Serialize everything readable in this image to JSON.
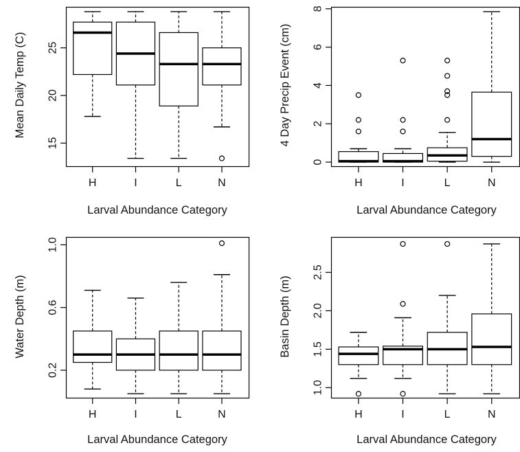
{
  "chart_data": [
    {
      "type": "box",
      "xlabel": "Larval Abundance Category",
      "ylabel": "Mean Daily Temp (C)",
      "categories": [
        "H",
        "I",
        "L",
        "N"
      ],
      "ylim": [
        12.5,
        29.3
      ],
      "yticks": [
        15,
        20,
        25
      ],
      "series": [
        {
          "category": "H",
          "min": 17.8,
          "q1": 22.2,
          "median": 26.6,
          "q3": 27.7,
          "max": 28.8,
          "outliers": []
        },
        {
          "category": "I",
          "min": 13.4,
          "q1": 21.1,
          "median": 24.4,
          "q3": 27.7,
          "max": 28.8,
          "outliers": []
        },
        {
          "category": "L",
          "min": 13.4,
          "q1": 18.9,
          "median": 23.3,
          "q3": 26.6,
          "max": 28.8,
          "outliers": []
        },
        {
          "category": "N",
          "min": 16.7,
          "q1": 21.1,
          "median": 23.3,
          "q3": 25.0,
          "max": 28.8,
          "outliers": [
            13.4
          ]
        }
      ]
    },
    {
      "type": "box",
      "xlabel": "Larval Abundance Category",
      "ylabel": "4 Day Precip Event (cm)",
      "categories": [
        "H",
        "I",
        "L",
        "N"
      ],
      "ylim": [
        -0.25,
        8.1
      ],
      "yticks": [
        0,
        2,
        4,
        6,
        8
      ],
      "series": [
        {
          "category": "H",
          "min": 0.0,
          "q1": 0.0,
          "median": 0.05,
          "q3": 0.55,
          "max": 0.7,
          "outliers": [
            1.6,
            2.2,
            3.5
          ]
        },
        {
          "category": "I",
          "min": 0.0,
          "q1": 0.0,
          "median": 0.05,
          "q3": 0.45,
          "max": 0.7,
          "outliers": [
            1.6,
            2.2,
            5.3
          ]
        },
        {
          "category": "L",
          "min": 0.0,
          "q1": 0.05,
          "median": 0.35,
          "q3": 0.75,
          "max": 1.55,
          "outliers": [
            2.2,
            3.5,
            3.7,
            4.5,
            5.3
          ]
        },
        {
          "category": "N",
          "min": 0.0,
          "q1": 0.3,
          "median": 1.2,
          "q3": 3.65,
          "max": 7.85,
          "outliers": []
        }
      ]
    },
    {
      "type": "box",
      "xlabel": "Larval Abundance Category",
      "ylabel": "Water Depth (m)",
      "categories": [
        "H",
        "I",
        "L",
        "N"
      ],
      "ylim": [
        0.02,
        1.05
      ],
      "yticks": [
        0.2,
        0.6,
        1.0
      ],
      "yticklabels": [
        "0.2",
        "0.6",
        "1.0"
      ],
      "series": [
        {
          "category": "H",
          "min": 0.08,
          "q1": 0.25,
          "median": 0.3,
          "q3": 0.45,
          "max": 0.71,
          "outliers": []
        },
        {
          "category": "I",
          "min": 0.05,
          "q1": 0.2,
          "median": 0.3,
          "q3": 0.4,
          "max": 0.66,
          "outliers": []
        },
        {
          "category": "L",
          "min": 0.05,
          "q1": 0.2,
          "median": 0.3,
          "q3": 0.45,
          "max": 0.76,
          "outliers": []
        },
        {
          "category": "N",
          "min": 0.05,
          "q1": 0.2,
          "median": 0.3,
          "q3": 0.45,
          "max": 0.81,
          "outliers": [
            1.01
          ]
        }
      ]
    },
    {
      "type": "box",
      "xlabel": "Larval Abundance Category",
      "ylabel": "Basin Depth (m)",
      "categories": [
        "H",
        "I",
        "L",
        "N"
      ],
      "ylim": [
        0.86,
        2.96
      ],
      "yticks": [
        1.0,
        1.5,
        2.0,
        2.5
      ],
      "yticklabels": [
        "1.0",
        "1.5",
        "2.0",
        "2.5"
      ],
      "series": [
        {
          "category": "H",
          "min": 1.12,
          "q1": 1.3,
          "median": 1.44,
          "q3": 1.53,
          "max": 1.72,
          "outliers": [
            0.92
          ]
        },
        {
          "category": "I",
          "min": 1.12,
          "q1": 1.3,
          "median": 1.5,
          "q3": 1.54,
          "max": 1.91,
          "outliers": [
            0.92,
            2.09,
            2.87
          ]
        },
        {
          "category": "L",
          "min": 0.92,
          "q1": 1.3,
          "median": 1.5,
          "q3": 1.72,
          "max": 2.2,
          "outliers": [
            2.87
          ]
        },
        {
          "category": "N",
          "min": 0.92,
          "q1": 1.3,
          "median": 1.53,
          "q3": 1.96,
          "max": 2.87,
          "outliers": []
        }
      ]
    }
  ]
}
